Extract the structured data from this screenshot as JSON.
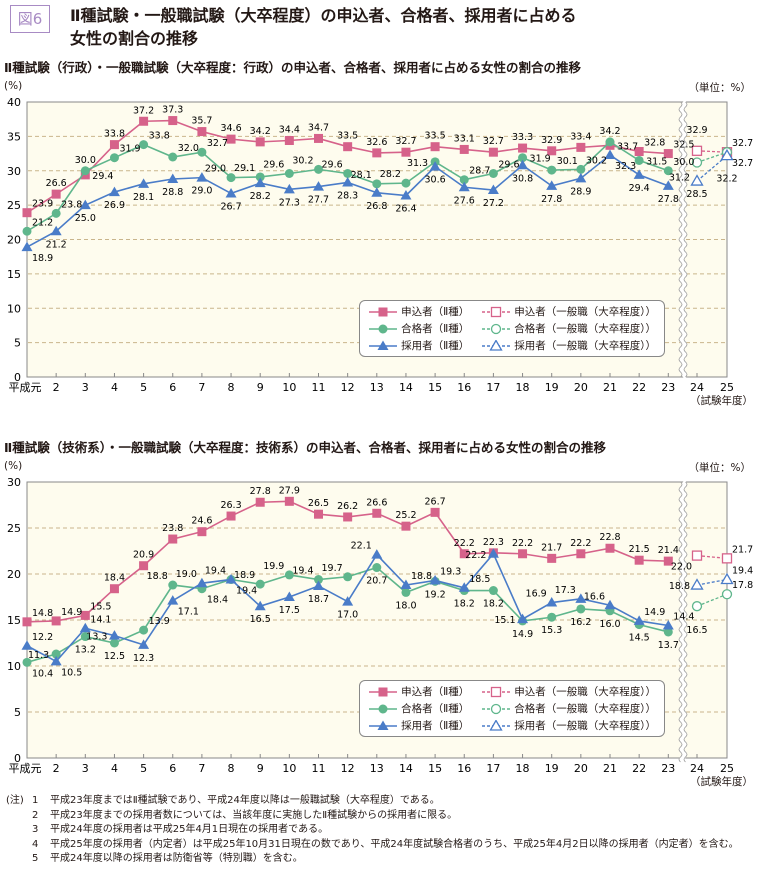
{
  "figure": {
    "badge": "図6",
    "title_line1": "Ⅱ種試験・一般職試験（大卒程度）の申込者、合格者、採用者に占める",
    "title_line2": "女性の割合の推移"
  },
  "legend_labels": [
    "申込者（Ⅱ種）",
    "申込者（一般職（大卒程度））",
    "合格者（Ⅱ種）",
    "合格者（一般職（大卒程度））",
    "採用者（Ⅱ種）",
    "採用者（一般職（大卒程度））"
  ],
  "colors": {
    "applicants": "#d6628a",
    "passers": "#5fb68c",
    "hires": "#4a7cc8",
    "plot_bg": "#fefcee",
    "grid": "#c9b58c",
    "badge": "#a88bc4"
  },
  "chart_data": [
    {
      "type": "line",
      "title": "Ⅱ種試験（行政）・一般職試験（大卒程度：行政）の申込者、合格者、採用者に占める女性の割合の推移",
      "ylabel": "(%)",
      "unit_note": "（単位：%）",
      "xlabel": "（試験年度）",
      "ylim": [
        0,
        40
      ],
      "yticks": [
        0,
        5,
        10,
        15,
        20,
        25,
        30,
        35,
        40
      ],
      "grid": true,
      "legend": "bottom-right",
      "categories": [
        "平成元",
        "2",
        "3",
        "4",
        "5",
        "6",
        "7",
        "8",
        "9",
        "10",
        "11",
        "12",
        "13",
        "14",
        "15",
        "16",
        "17",
        "18",
        "19",
        "20",
        "21",
        "22",
        "23",
        "24",
        "25"
      ],
      "series": [
        {
          "name": "申込者（Ⅱ種）",
          "color_key": "applicants",
          "marker": "square",
          "values": [
            23.9,
            26.6,
            29.4,
            33.8,
            37.2,
            37.3,
            35.7,
            34.6,
            34.2,
            34.4,
            34.7,
            33.5,
            32.6,
            32.7,
            33.5,
            33.1,
            32.7,
            33.3,
            32.9,
            33.4,
            33.7,
            32.8,
            32.5,
            null,
            null
          ]
        },
        {
          "name": "合格者（Ⅱ種）",
          "color_key": "passers",
          "marker": "circle",
          "values": [
            21.2,
            23.8,
            30.0,
            31.9,
            33.8,
            32.0,
            32.7,
            29.0,
            29.1,
            29.6,
            30.2,
            29.6,
            28.1,
            28.2,
            31.3,
            28.7,
            29.6,
            31.9,
            30.1,
            30.2,
            34.2,
            31.5,
            30.0,
            null,
            null
          ]
        },
        {
          "name": "採用者（Ⅱ種）",
          "color_key": "hires",
          "marker": "triangle",
          "values": [
            18.9,
            21.2,
            25.0,
            26.9,
            28.1,
            28.8,
            29.0,
            26.7,
            28.2,
            27.3,
            27.7,
            28.3,
            26.8,
            26.4,
            30.6,
            27.6,
            27.2,
            30.8,
            27.8,
            28.9,
            32.3,
            29.4,
            27.8,
            null,
            null
          ]
        },
        {
          "name": "申込者（一般職（大卒程度））",
          "color_key": "applicants",
          "marker": "square-open",
          "dashed": true,
          "values": [
            null,
            null,
            null,
            null,
            null,
            null,
            null,
            null,
            null,
            null,
            null,
            null,
            null,
            null,
            null,
            null,
            null,
            null,
            null,
            null,
            null,
            null,
            null,
            32.9,
            32.7
          ]
        },
        {
          "name": "合格者（一般職（大卒程度））",
          "color_key": "passers",
          "marker": "circle-open",
          "dashed": true,
          "values": [
            null,
            null,
            null,
            null,
            null,
            null,
            null,
            null,
            null,
            null,
            null,
            null,
            null,
            null,
            null,
            null,
            null,
            null,
            null,
            null,
            null,
            null,
            null,
            31.2,
            32.7
          ]
        },
        {
          "name": "採用者（一般職（大卒程度））",
          "color_key": "hires",
          "marker": "triangle-open",
          "dashed": true,
          "values": [
            null,
            null,
            null,
            null,
            null,
            null,
            null,
            null,
            null,
            null,
            null,
            null,
            null,
            null,
            null,
            null,
            null,
            null,
            null,
            null,
            null,
            null,
            null,
            28.5,
            32.2
          ]
        }
      ]
    },
    {
      "type": "line",
      "title": "Ⅱ種試験（技術系）・一般職試験（大卒程度：技術系）の申込者、合格者、採用者に占める女性の割合の推移",
      "ylabel": "(%)",
      "unit_note": "（単位：%）",
      "xlabel": "（試験年度）",
      "ylim": [
        0,
        30
      ],
      "yticks": [
        0,
        5,
        10,
        15,
        20,
        25,
        30
      ],
      "grid": true,
      "legend": "bottom-right",
      "categories": [
        "平成元",
        "2",
        "3",
        "4",
        "5",
        "6",
        "7",
        "8",
        "9",
        "10",
        "11",
        "12",
        "13",
        "14",
        "15",
        "16",
        "17",
        "18",
        "19",
        "20",
        "21",
        "22",
        "23",
        "24",
        "25"
      ],
      "series": [
        {
          "name": "申込者（Ⅱ種）",
          "color_key": "applicants",
          "marker": "square",
          "values": [
            14.8,
            14.9,
            15.5,
            18.4,
            20.9,
            23.8,
            24.6,
            26.3,
            27.8,
            27.9,
            26.5,
            26.2,
            26.6,
            25.2,
            26.7,
            22.2,
            22.3,
            22.2,
            21.7,
            22.2,
            22.8,
            21.5,
            21.4,
            null,
            null
          ]
        },
        {
          "name": "合格者（Ⅱ種）",
          "color_key": "passers",
          "marker": "circle",
          "values": [
            10.4,
            11.3,
            13.2,
            12.5,
            13.9,
            18.8,
            18.4,
            19.4,
            18.9,
            19.9,
            19.4,
            19.7,
            20.7,
            18.0,
            19.2,
            18.2,
            18.2,
            14.9,
            15.3,
            16.2,
            16.0,
            14.5,
            13.7,
            null,
            null
          ]
        },
        {
          "name": "採用者（Ⅱ種）",
          "color_key": "hires",
          "marker": "triangle",
          "values": [
            12.2,
            10.5,
            14.1,
            13.3,
            12.3,
            17.1,
            19.0,
            19.4,
            16.5,
            17.5,
            18.7,
            17.0,
            22.1,
            18.8,
            19.3,
            18.5,
            22.2,
            15.1,
            16.9,
            17.3,
            16.6,
            14.9,
            14.4,
            null,
            null
          ]
        },
        {
          "name": "申込者（一般職（大卒程度））",
          "color_key": "applicants",
          "marker": "square-open",
          "dashed": true,
          "values": [
            null,
            null,
            null,
            null,
            null,
            null,
            null,
            null,
            null,
            null,
            null,
            null,
            null,
            null,
            null,
            null,
            null,
            null,
            null,
            null,
            null,
            null,
            null,
            22.0,
            21.7
          ]
        },
        {
          "name": "合格者（一般職（大卒程度））",
          "color_key": "passers",
          "marker": "circle-open",
          "dashed": true,
          "values": [
            null,
            null,
            null,
            null,
            null,
            null,
            null,
            null,
            null,
            null,
            null,
            null,
            null,
            null,
            null,
            null,
            null,
            null,
            null,
            null,
            null,
            null,
            null,
            16.5,
            17.8
          ]
        },
        {
          "name": "採用者（一般職（大卒程度））",
          "color_key": "hires",
          "marker": "triangle-open",
          "dashed": true,
          "values": [
            null,
            null,
            null,
            null,
            null,
            null,
            null,
            null,
            null,
            null,
            null,
            null,
            null,
            null,
            null,
            null,
            null,
            null,
            null,
            null,
            null,
            null,
            null,
            18.8,
            19.4
          ]
        }
      ]
    }
  ],
  "notes": {
    "head": "(注)",
    "items": [
      {
        "num": "1",
        "text": "平成23年度まではⅡ種試験であり、平成24年度以降は一般職試験（大卒程度）である。"
      },
      {
        "num": "2",
        "text": "平成23年度までの採用者数については、当該年度に実施したⅡ種試験からの採用者に限る。"
      },
      {
        "num": "3",
        "text": "平成24年度の採用者は平成25年4月1日現在の採用者である。"
      },
      {
        "num": "4",
        "text": "平成25年度の採用者（内定者）は平成25年10月31日現在の数であり、平成24年度試験合格者のうち、平成25年4月2日以降の採用者（内定者）を含む。"
      },
      {
        "num": "5",
        "text": "平成24年度以降の採用者は防衛省等（特別職）を含む。"
      }
    ]
  }
}
